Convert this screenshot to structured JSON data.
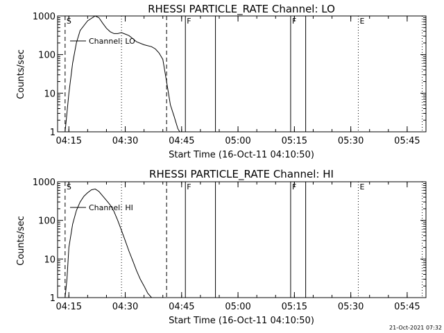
{
  "chart_data": [
    {
      "type": "line",
      "title": "RHESSI PARTICLE_RATE Channel: LO",
      "xlabel": "Start Time (16-Oct-11 04:10:50)",
      "ylabel": "Counts/sec",
      "y_scale": "log",
      "ylim": [
        1,
        1000
      ],
      "xlim": [
        "04:12",
        "05:50"
      ],
      "x_ticks": [
        "04:15",
        "04:30",
        "04:45",
        "05:00",
        "05:15",
        "05:30",
        "05:45"
      ],
      "y_ticks": [
        "1",
        "10",
        "100",
        "1000"
      ],
      "legend": "Channel: LO",
      "legend_position": "top-left",
      "markers": [
        {
          "time": "04:14",
          "style": "dashed",
          "label": "S"
        },
        {
          "time": "04:29",
          "style": "dotted",
          "label": ""
        },
        {
          "time": "04:41",
          "style": "dashed",
          "label": ""
        },
        {
          "time": "04:46",
          "style": "solid",
          "label": "F"
        },
        {
          "time": "04:54",
          "style": "solid",
          "label": ""
        },
        {
          "time": "05:14",
          "style": "solid",
          "label": "F"
        },
        {
          "time": "05:18",
          "style": "solid",
          "label": ""
        },
        {
          "time": "05:32",
          "style": "dotted",
          "label": "E"
        },
        {
          "time": "05:49",
          "style": "dotted",
          "label": ""
        }
      ],
      "series": [
        {
          "name": "Channel: LO",
          "x": [
            "04:14.0",
            "04:14.3",
            "04:15",
            "04:16",
            "04:17",
            "04:18",
            "04:20",
            "04:22",
            "04:23",
            "04:24",
            "04:25",
            "04:26",
            "04:27",
            "04:28",
            "04:29",
            "04:30",
            "04:31",
            "04:32",
            "04:33",
            "04:35",
            "04:37",
            "04:38",
            "04:39",
            "04:40",
            "04:41",
            "04:42",
            "04:43",
            "04:44",
            "04:44.5"
          ],
          "values": [
            1,
            2,
            10,
            60,
            200,
            420,
            750,
            1000,
            900,
            650,
            480,
            390,
            350,
            350,
            370,
            340,
            310,
            260,
            215,
            180,
            160,
            140,
            110,
            75,
            20,
            5,
            2.5,
            1.2,
            1
          ]
        }
      ]
    },
    {
      "type": "line",
      "title": "RHESSI PARTICLE_RATE Channel: HI",
      "xlabel": "Start Time (16-Oct-11 04:10:50)",
      "ylabel": "Counts/sec",
      "y_scale": "log",
      "ylim": [
        1,
        1000
      ],
      "xlim": [
        "04:12",
        "05:50"
      ],
      "x_ticks": [
        "04:15",
        "04:30",
        "04:45",
        "05:00",
        "05:15",
        "05:30",
        "05:45"
      ],
      "y_ticks": [
        "1",
        "10",
        "100",
        "1000"
      ],
      "legend": "Channel: HI",
      "legend_position": "top-left",
      "markers": [
        {
          "time": "04:14",
          "style": "dashed",
          "label": "S"
        },
        {
          "time": "04:29",
          "style": "dotted",
          "label": ""
        },
        {
          "time": "04:41",
          "style": "dashed",
          "label": ""
        },
        {
          "time": "04:46",
          "style": "solid",
          "label": "F"
        },
        {
          "time": "04:54",
          "style": "solid",
          "label": ""
        },
        {
          "time": "05:14",
          "style": "solid",
          "label": "F"
        },
        {
          "time": "05:18",
          "style": "solid",
          "label": ""
        },
        {
          "time": "05:32",
          "style": "dotted",
          "label": "E"
        },
        {
          "time": "05:49",
          "style": "dotted",
          "label": ""
        }
      ],
      "series": [
        {
          "name": "Channel: HI",
          "x": [
            "04:14.0",
            "04:14.5",
            "04:15",
            "04:16",
            "04:17",
            "04:18",
            "04:19",
            "04:20",
            "04:21",
            "04:22",
            "04:23",
            "04:24",
            "04:25",
            "04:26",
            "04:27",
            "04:28",
            "04:29",
            "04:30",
            "04:31",
            "04:32",
            "04:33",
            "04:34",
            "04:35",
            "04:36",
            "04:37"
          ],
          "values": [
            1,
            3,
            20,
            80,
            180,
            300,
            420,
            520,
            620,
            650,
            560,
            430,
            330,
            250,
            170,
            100,
            55,
            30,
            16,
            9,
            5,
            3,
            2,
            1.3,
            1
          ]
        }
      ]
    }
  ],
  "footer": {
    "timestamp": "21-Oct-2021 07:32"
  }
}
